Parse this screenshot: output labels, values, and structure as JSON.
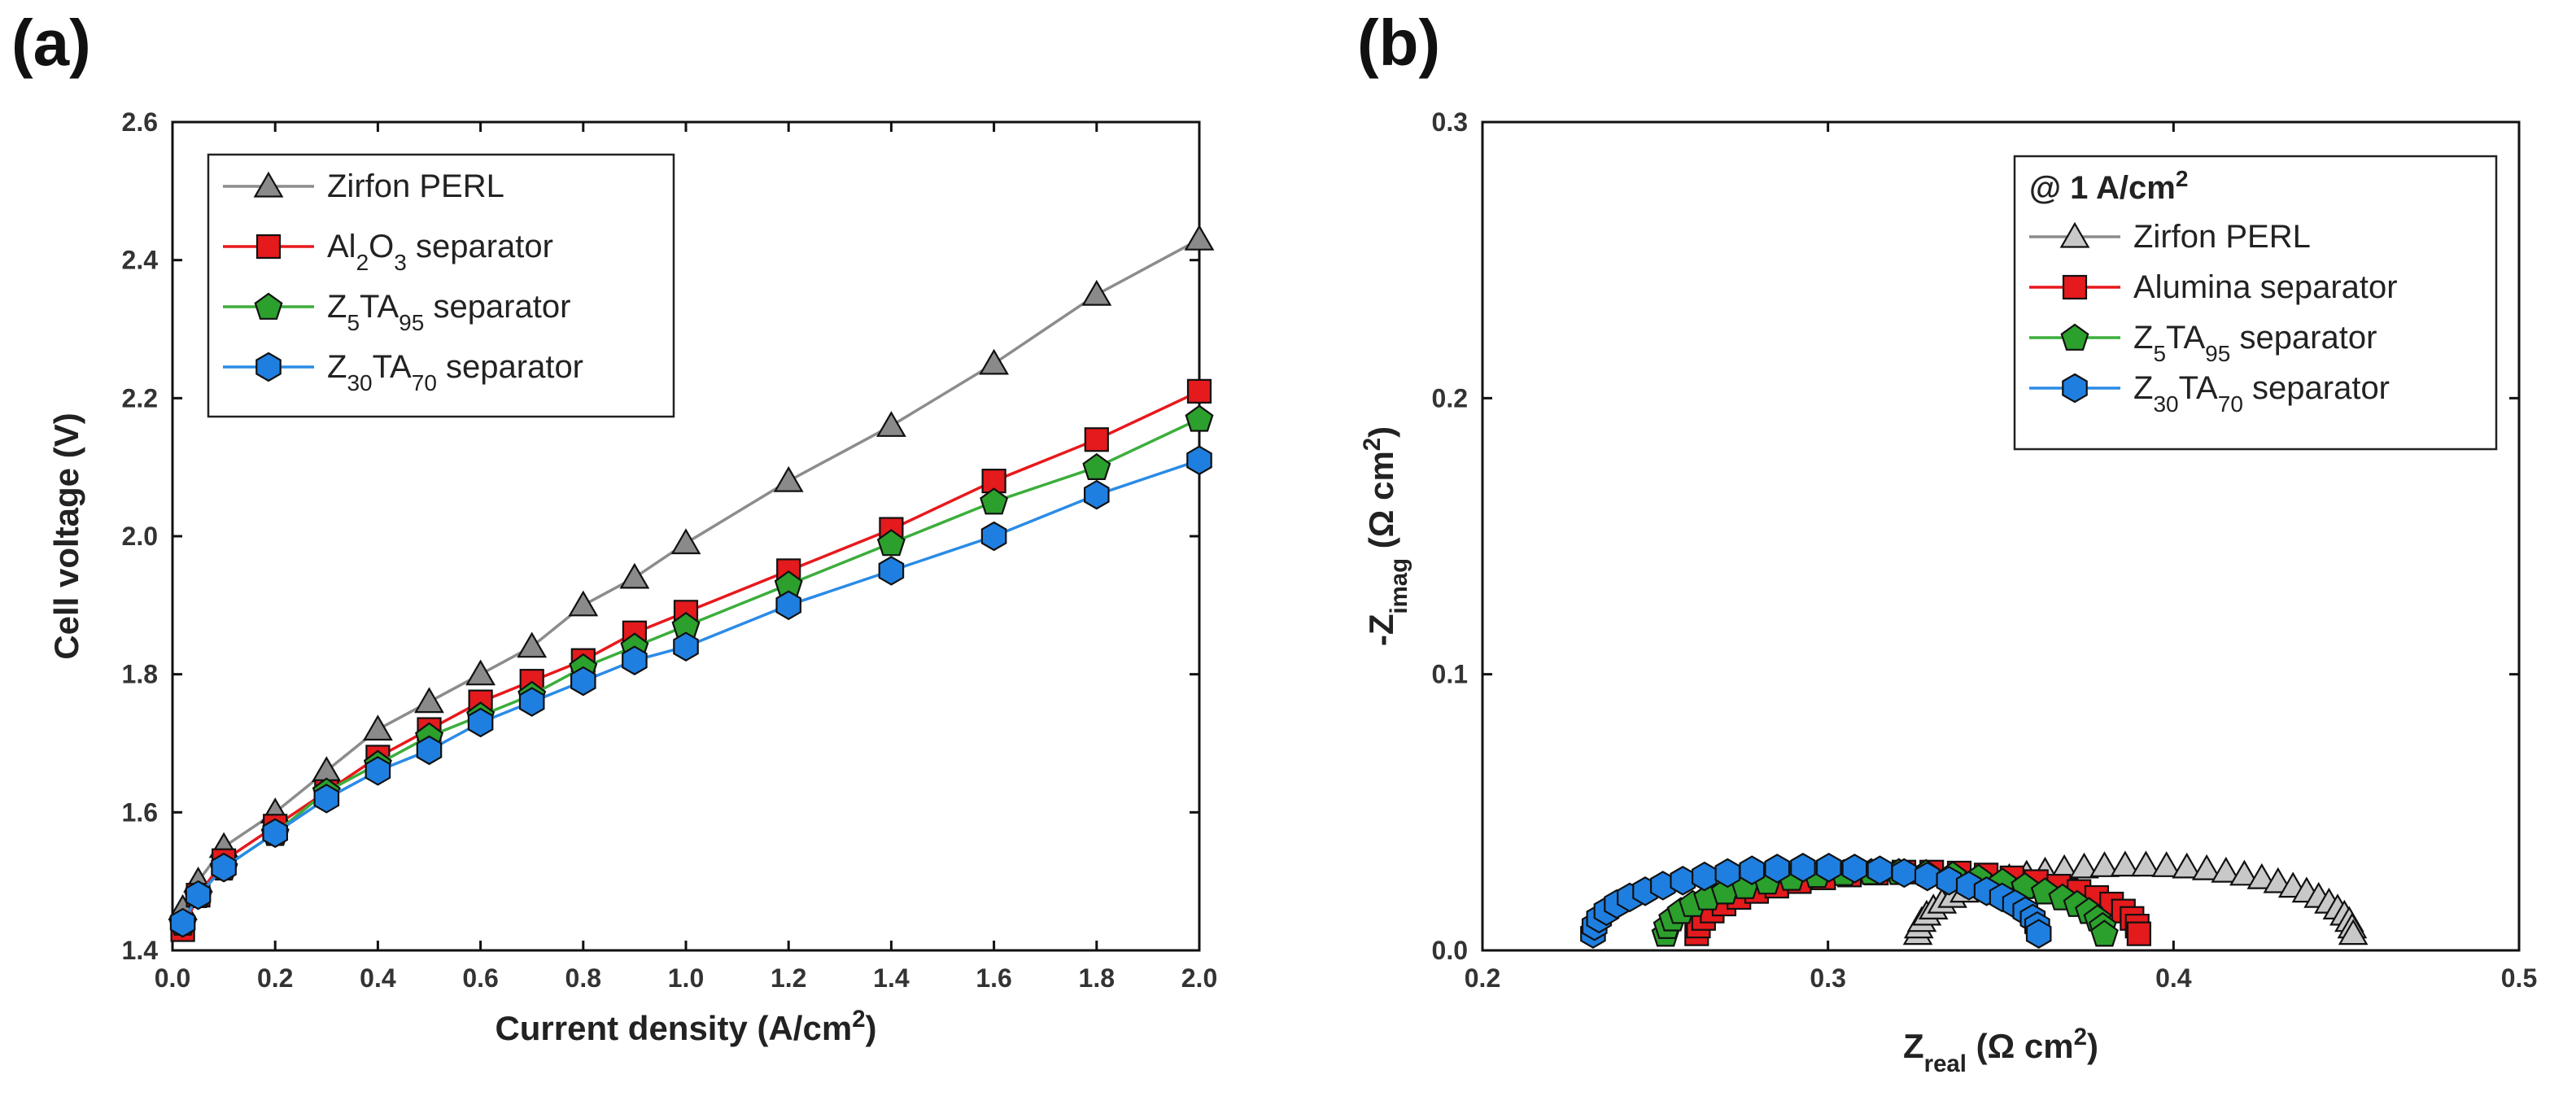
{
  "chart_data": [
    {
      "panel": "(a)",
      "type": "line",
      "xlabel": "Current density (A/cm",
      "xlabel_sup": "2",
      "xlabel_tail": ")",
      "ylabel": "Cell voltage (V)",
      "xlim": [
        0,
        2.0
      ],
      "ylim": [
        1.4,
        2.6
      ],
      "xticks": [
        0.0,
        0.2,
        0.4,
        0.6,
        0.8,
        1.0,
        1.2,
        1.4,
        1.6,
        1.8,
        2.0
      ],
      "xtick_labels": [
        "0.0",
        "0.2",
        "0.4",
        "0.6",
        "0.8",
        "1.0",
        "1.2",
        "1.4",
        "1.6",
        "1.8",
        "2.0"
      ],
      "yticks": [
        1.4,
        1.6,
        1.8,
        2.0,
        2.2,
        2.4,
        2.6
      ],
      "ytick_labels": [
        "1.4",
        "1.6",
        "1.8",
        "2.0",
        "2.2",
        "2.4",
        "2.6"
      ],
      "legend_position": "top-left",
      "series": [
        {
          "name": "Zirfon PERL",
          "legend": [
            {
              "t": "Zirfon PERL"
            }
          ],
          "marker": "triangle",
          "line_color": "#8c8c8c",
          "fill": "#8a8a8a",
          "x": [
            0.02,
            0.05,
            0.1,
            0.2,
            0.3,
            0.4,
            0.5,
            0.6,
            0.7,
            0.8,
            0.9,
            1.0,
            1.2,
            1.4,
            1.6,
            1.8,
            2.0
          ],
          "y": [
            1.46,
            1.5,
            1.55,
            1.6,
            1.66,
            1.72,
            1.76,
            1.8,
            1.84,
            1.9,
            1.94,
            1.99,
            2.08,
            2.16,
            2.25,
            2.35,
            2.43
          ]
        },
        {
          "name": "Al2O3 separator",
          "legend": [
            {
              "t": "Al"
            },
            {
              "t": "2",
              "sub": true
            },
            {
              "t": "O"
            },
            {
              "t": "3",
              "sub": true
            },
            {
              "t": " separator"
            }
          ],
          "marker": "square",
          "line_color": "#e8181c",
          "fill": "#e41a1c",
          "x": [
            0.02,
            0.05,
            0.1,
            0.2,
            0.3,
            0.4,
            0.5,
            0.6,
            0.7,
            0.8,
            0.9,
            1.0,
            1.2,
            1.4,
            1.6,
            1.8,
            2.0
          ],
          "y": [
            1.43,
            1.48,
            1.53,
            1.58,
            1.63,
            1.68,
            1.72,
            1.76,
            1.79,
            1.82,
            1.86,
            1.89,
            1.95,
            2.01,
            2.08,
            2.14,
            2.21
          ]
        },
        {
          "name": "Z5TA95 separator",
          "legend": [
            {
              "t": "Z"
            },
            {
              "t": "5",
              "sub": true
            },
            {
              "t": "TA"
            },
            {
              "t": "95",
              "sub": true
            },
            {
              "t": " separator"
            }
          ],
          "marker": "pentagon",
          "line_color": "#3cae3c",
          "fill": "#2ca02c",
          "x": [
            0.02,
            0.05,
            0.1,
            0.2,
            0.3,
            0.4,
            0.5,
            0.6,
            0.7,
            0.8,
            0.9,
            1.0,
            1.2,
            1.4,
            1.6,
            1.8,
            2.0
          ],
          "y": [
            1.44,
            1.48,
            1.52,
            1.57,
            1.63,
            1.67,
            1.71,
            1.74,
            1.77,
            1.81,
            1.84,
            1.87,
            1.93,
            1.99,
            2.05,
            2.1,
            2.17
          ]
        },
        {
          "name": "Z30TA70 separator",
          "legend": [
            {
              "t": "Z"
            },
            {
              "t": "30",
              "sub": true
            },
            {
              "t": "TA"
            },
            {
              "t": "70",
              "sub": true
            },
            {
              "t": " separator"
            }
          ],
          "marker": "hexagon",
          "line_color": "#2b8be6",
          "fill": "#1f7fe0",
          "x": [
            0.02,
            0.05,
            0.1,
            0.2,
            0.3,
            0.4,
            0.5,
            0.6,
            0.7,
            0.8,
            0.9,
            1.0,
            1.2,
            1.4,
            1.6,
            1.8,
            2.0
          ],
          "y": [
            1.44,
            1.48,
            1.52,
            1.57,
            1.62,
            1.66,
            1.69,
            1.73,
            1.76,
            1.79,
            1.82,
            1.84,
            1.9,
            1.95,
            2.0,
            2.06,
            2.11
          ]
        }
      ]
    },
    {
      "panel": "(b)",
      "type": "scatter",
      "xlabel": "Z",
      "xlabel_sub": "real",
      "xlabel_tail": " (Ω cm",
      "xlabel_sup": "2",
      "xlabel_end": ")",
      "ylabel": "-Z",
      "ylabel_sub": "imag",
      "ylabel_tail": " (Ω cm",
      "ylabel_sup": "2",
      "ylabel_end": ")",
      "xlim": [
        0.2,
        0.5
      ],
      "ylim": [
        0,
        0.3
      ],
      "xticks": [
        0.2,
        0.3,
        0.4,
        0.5
      ],
      "xtick_labels": [
        "0.2",
        "0.3",
        "0.4",
        "0.5"
      ],
      "yticks": [
        0.0,
        0.1,
        0.2,
        0.3
      ],
      "ytick_labels": [
        "0.0",
        "0.1",
        "0.2",
        "0.3"
      ],
      "legend_position": "top-right",
      "legend_title": "@ 1 A/cm",
      "legend_title_sup": "2",
      "series": [
        {
          "name": "Zirfon PERL",
          "legend": [
            {
              "t": "Zirfon PERL"
            }
          ],
          "marker": "triangle",
          "line_color": "#8c8c8c",
          "fill": "#c8c8c8",
          "arc": {
            "r0": 0.326,
            "r1": 0.452,
            "amp": 0.031,
            "n": 34
          }
        },
        {
          "name": "Alumina separator",
          "legend": [
            {
              "t": "Alumina separator"
            }
          ],
          "marker": "square",
          "line_color": "#e8181c",
          "fill": "#e41a1c",
          "arc": {
            "r0": 0.262,
            "r1": 0.39,
            "amp": 0.028,
            "n": 26
          }
        },
        {
          "name": "Z5TA95 separator",
          "legend": [
            {
              "t": "Z"
            },
            {
              "t": "5",
              "sub": true
            },
            {
              "t": "TA"
            },
            {
              "t": "95",
              "sub": true
            },
            {
              "t": " separator"
            }
          ],
          "marker": "pentagon",
          "line_color": "#3cae3c",
          "fill": "#2ca02c",
          "arc": {
            "r0": 0.253,
            "r1": 0.38,
            "amp": 0.028,
            "n": 26
          }
        },
        {
          "name": "Z30TA70 separator",
          "legend": [
            {
              "t": "Z"
            },
            {
              "t": "30",
              "sub": true
            },
            {
              "t": "TA"
            },
            {
              "t": "70",
              "sub": true
            },
            {
              "t": " separator"
            }
          ],
          "marker": "hexagon",
          "line_color": "#2b8be6",
          "fill": "#1f7fe0",
          "arc": {
            "r0": 0.232,
            "r1": 0.361,
            "amp": 0.03,
            "n": 28
          }
        }
      ]
    }
  ]
}
